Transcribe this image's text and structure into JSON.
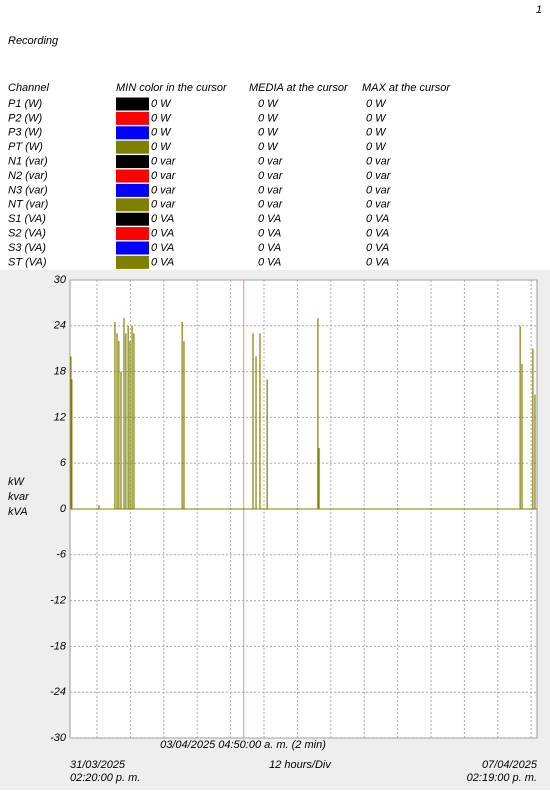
{
  "page_number": "1",
  "heading": "Recording",
  "table": {
    "columns": [
      "Channel",
      "MIN color in the cursor",
      "MEDIA at the cursor",
      "MAX at the cursor"
    ],
    "rows": [
      {
        "channel": "P1 (W)",
        "color": "#000000",
        "min": "0 W",
        "media": "0 W",
        "max": "0 W"
      },
      {
        "channel": "P2 (W)",
        "color": "#ff0000",
        "min": "0 W",
        "media": "0 W",
        "max": "0 W"
      },
      {
        "channel": "P3 (W)",
        "color": "#0000ff",
        "min": "0 W",
        "media": "0 W",
        "max": "0 W"
      },
      {
        "channel": "PT (W)",
        "color": "#808000",
        "min": "0 W",
        "media": "0 W",
        "max": "0 W"
      },
      {
        "channel": "N1 (var)",
        "color": "#000000",
        "min": "0 var",
        "media": "0 var",
        "max": "0 var"
      },
      {
        "channel": "N2 (var)",
        "color": "#ff0000",
        "min": "0 var",
        "media": "0 var",
        "max": "0 var"
      },
      {
        "channel": "N3 (var)",
        "color": "#0000ff",
        "min": "0 var",
        "media": "0 var",
        "max": "0 var"
      },
      {
        "channel": "NT (var)",
        "color": "#808000",
        "min": "0 var",
        "media": "0 var",
        "max": "0 var"
      },
      {
        "channel": "S1 (VA)",
        "color": "#000000",
        "min": "0 VA",
        "media": "0 VA",
        "max": "0 VA"
      },
      {
        "channel": "S2 (VA)",
        "color": "#ff0000",
        "min": "0 VA",
        "media": "0 VA",
        "max": "0 VA"
      },
      {
        "channel": "S3 (VA)",
        "color": "#0000ff",
        "min": "0 VA",
        "media": "0 VA",
        "max": "0 VA"
      },
      {
        "channel": "ST (VA)",
        "color": "#808000",
        "min": "0 VA",
        "media": "0 VA",
        "max": "0 VA"
      }
    ]
  },
  "chart_data": {
    "type": "spike",
    "ylabel": [
      "kW",
      "kvar",
      "kVA"
    ],
    "ylim": [
      -30,
      30
    ],
    "yticks": [
      -30,
      -24,
      -18,
      -12,
      -6,
      0,
      6,
      12,
      18,
      24,
      30
    ],
    "xlim": [
      "2025-03-31T14:20",
      "2025-04-07T14:19"
    ],
    "start_label": [
      "31/03/2025",
      "02:20:00 p. m."
    ],
    "end_label": [
      "07/04/2025",
      "02:19:00 p. m."
    ],
    "division_label": "12 hours/Div",
    "cursor": {
      "x": "2025-04-03T04:50",
      "label": "03/04/2025 04:50:00 a. m. (2 min)",
      "color": "#ff8080"
    },
    "grid": true,
    "series": [
      {
        "name": "ST (VA)",
        "color": "#808000",
        "x": [
          "2025-03-31T14:40",
          "2025-03-31T15:00",
          "2025-04-01T00:45",
          "2025-04-01T06:30",
          "2025-04-01T07:15",
          "2025-04-01T07:55",
          "2025-04-01T08:40",
          "2025-04-01T09:45",
          "2025-04-01T10:25",
          "2025-04-01T11:15",
          "2025-04-01T11:55",
          "2025-04-01T12:40",
          "2025-04-01T13:20",
          "2025-04-02T06:40",
          "2025-04-02T07:20",
          "2025-04-03T08:10",
          "2025-04-03T09:15",
          "2025-04-03T10:40",
          "2025-04-03T13:15",
          "2025-04-04T07:30",
          "2025-04-04T07:55",
          "2025-04-07T08:15",
          "2025-04-07T08:55",
          "2025-04-07T12:50",
          "2025-04-07T13:35"
        ],
        "values": [
          20,
          17,
          0.5,
          24.5,
          23,
          22,
          18,
          25,
          23,
          24,
          22,
          24,
          23,
          24.5,
          22,
          23,
          20,
          23,
          17,
          25,
          8,
          24,
          19,
          21,
          15
        ]
      }
    ]
  }
}
